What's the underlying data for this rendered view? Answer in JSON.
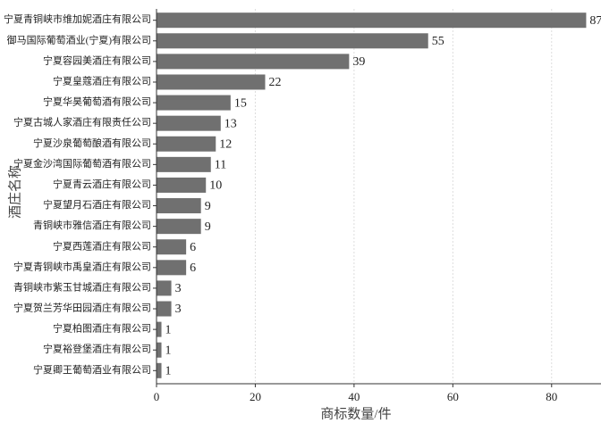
{
  "chart_data": {
    "type": "bar",
    "orientation": "horizontal",
    "x_label": "商标数量/件",
    "y_label": "酒庄名称",
    "categories": [
      "宁夏青铜峡市维加妮酒庄有限公司",
      "御马国际葡萄酒业(宁夏)有限公司",
      "宁夏容园美酒庄有限公司",
      "宁夏皇蔻酒庄有限公司",
      "宁夏华昊葡萄酒有限公司",
      "宁夏古城人家酒庄有限责任公司",
      "宁夏沙泉葡萄酿酒有限公司",
      "宁夏金沙湾国际葡萄酒有限公司",
      "宁夏青云酒庄有限公司",
      "宁夏望月石酒庄有限公司",
      "青铜峡市雅信酒庄有限公司",
      "宁夏西莲酒庄有限公司",
      "宁夏青铜峡市禹皇酒庄有限公司",
      "青铜峡市紫玉甘城酒庄有限公司",
      "宁夏贺兰芳华田园酒庄有限公司",
      "宁夏柏图酒庄有限公司",
      "宁夏裕登堡酒庄有限公司",
      "宁夏卿王葡萄酒业有限公司"
    ],
    "values": [
      87,
      55,
      39,
      22,
      15,
      13,
      12,
      11,
      10,
      9,
      9,
      6,
      6,
      3,
      3,
      1,
      1,
      1
    ],
    "color": "#707070",
    "xlim": [
      0,
      90
    ],
    "xticks": [
      0,
      20,
      40,
      60,
      80
    ],
    "grid": true
  }
}
